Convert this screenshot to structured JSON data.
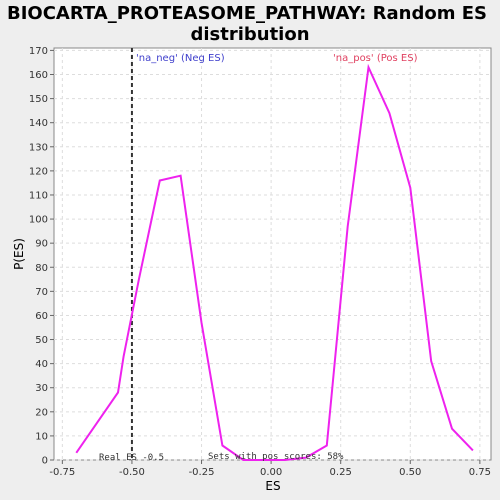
{
  "chart_data": {
    "type": "line",
    "title_line1": "BIOCARTA_PROTEASOME_PATHWAY: Random ES",
    "title_line2": "distribution",
    "xlabel": "ES",
    "ylabel": "P(ES)",
    "xlim": [
      -0.78,
      0.79
    ],
    "ylim": [
      0,
      171
    ],
    "x_ticks": [
      -0.75,
      -0.5,
      -0.25,
      0.0,
      0.25,
      0.5,
      0.75
    ],
    "x_tick_labels": [
      "-0.75",
      "-0.50",
      "-0.25",
      "0.00",
      "0.25",
      "0.50",
      "0.75"
    ],
    "y_ticks": [
      0,
      10,
      20,
      30,
      40,
      50,
      60,
      70,
      80,
      90,
      100,
      110,
      120,
      130,
      140,
      150,
      160,
      170
    ],
    "y_tick_labels": [
      "0",
      "10",
      "20",
      "30",
      "40",
      "50",
      "60",
      "70",
      "80",
      "90",
      "100",
      "110",
      "120",
      "130",
      "140",
      "150",
      "160",
      "170"
    ],
    "grid": true,
    "series": [
      {
        "color": "#ee22ee",
        "x": [
          -0.7,
          -0.55,
          -0.53,
          -0.475,
          -0.4,
          -0.325,
          -0.25,
          -0.175,
          -0.1,
          -0.025,
          0.05,
          0.125,
          0.2,
          0.275,
          0.35,
          0.425,
          0.5,
          0.575,
          0.65,
          0.725
        ],
        "y": [
          3,
          28,
          43,
          75,
          116,
          118,
          57,
          6,
          0,
          0,
          0,
          1,
          6,
          97,
          163,
          144,
          113,
          41,
          13,
          4
        ]
      }
    ],
    "real_es": -0.5,
    "annotations": {
      "neg_label": "'na_neg' (Neg ES)",
      "pos_label": "'na_pos' (Pos ES)",
      "real_es_label": "Real ES -0.5",
      "pos_scores_label": "Sets with pos scores: 58%"
    }
  }
}
